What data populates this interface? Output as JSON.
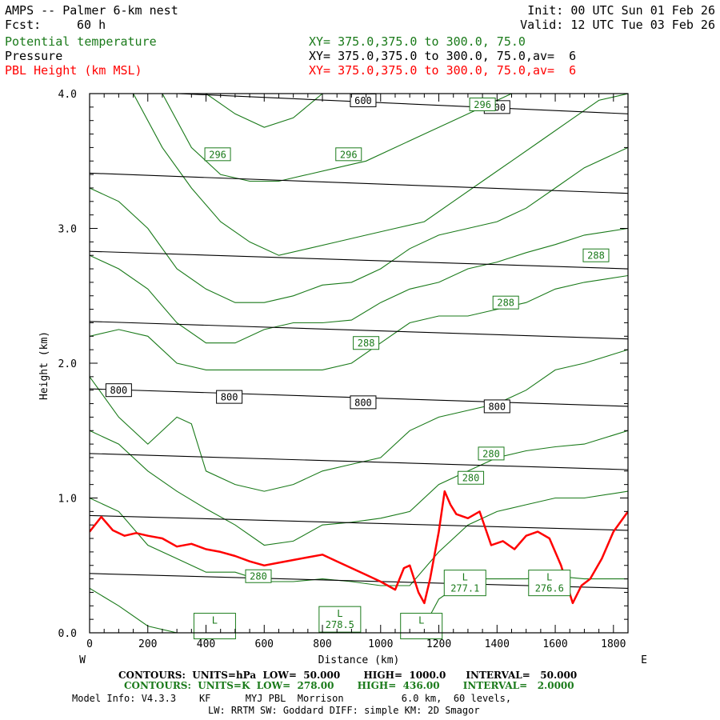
{
  "header": {
    "title": "AMPS -- Palmer 6-km nest",
    "fcst_label": "Fcst:",
    "fcst_value": "60 h",
    "init": "Init: 00 UTC Sun 01 Feb 26",
    "valid": "Valid: 12 UTC Tue 03 Feb 26"
  },
  "legend": [
    {
      "name": "Potential temperature",
      "xy": "XY= 375.0,375.0 to 300.0, 75.0",
      "color": "#1a7a1a"
    },
    {
      "name": "Pressure",
      "xy": "XY= 375.0,375.0 to 300.0, 75.0,av=  6",
      "color": "#000000"
    },
    {
      "name": "PBL Height (km MSL)",
      "xy": "XY= 375.0,375.0 to 300.0, 75.0,av=  6",
      "color": "#ff0000"
    }
  ],
  "chart_data": {
    "type": "line",
    "title": "Cross section: Potential temperature, Pressure, PBL Height",
    "xlabel": "Distance (km)",
    "ylabel": "Height (km)",
    "xlim": [
      0,
      1850
    ],
    "ylim": [
      0,
      4
    ],
    "x_ticks": [
      0,
      200,
      400,
      600,
      800,
      1000,
      1200,
      1400,
      1600,
      1800
    ],
    "x_tick_labels": [
      "0",
      "200",
      "400",
      "600",
      "800",
      "1000",
      "1200",
      "1400",
      "1600",
      "1800"
    ],
    "y_ticks": [
      0,
      1,
      2,
      3,
      4
    ],
    "y_tick_labels": [
      "0.0",
      "1.0",
      "2.0",
      "3.0",
      "4.0"
    ],
    "left_end_label": "W",
    "right_end_label": "E",
    "pressure_isobars": [
      {
        "value": 600,
        "y_start": 4.03,
        "y_end": 3.85
      },
      {
        "value": null,
        "y_start": 3.41,
        "y_end": 3.26
      },
      {
        "value": null,
        "y_start": 2.83,
        "y_end": 2.7
      },
      {
        "value": null,
        "y_start": 2.31,
        "y_end": 2.18
      },
      {
        "value": 800,
        "y_start": 1.81,
        "y_end": 1.68
      },
      {
        "value": null,
        "y_start": 1.33,
        "y_end": 1.21
      },
      {
        "value": null,
        "y_start": 0.87,
        "y_end": 0.76
      },
      {
        "value": null,
        "y_start": 0.44,
        "y_end": 0.33
      }
    ],
    "isobar_labels": [
      {
        "text": "600",
        "x": 940,
        "y": 3.95
      },
      {
        "text": "600",
        "x": 1400,
        "y": 3.9
      },
      {
        "text": "800",
        "x": 100,
        "y": 1.8
      },
      {
        "text": "800",
        "x": 480,
        "y": 1.75
      },
      {
        "text": "800",
        "x": 940,
        "y": 1.71
      },
      {
        "text": "800",
        "x": 1400,
        "y": 1.68
      }
    ],
    "theta_contours": [
      {
        "x": [
          0,
          100,
          200,
          300,
          400,
          500,
          600,
          700,
          800,
          900,
          1000,
          1100,
          1150,
          1200,
          1300,
          1400,
          1500,
          1600,
          1700,
          1850
        ],
        "y": [
          0.33,
          0.2,
          0.05,
          0,
          0,
          0,
          0,
          0,
          0,
          0,
          0,
          0,
          0.05,
          0.25,
          0.4,
          0.4,
          0.4,
          0.42,
          0.4,
          0.4
        ]
      },
      {
        "x": [
          0,
          100,
          200,
          300,
          400,
          500,
          600,
          700,
          800,
          900,
          1000,
          1100,
          1200,
          1300,
          1400,
          1500,
          1600,
          1700,
          1850
        ],
        "y": [
          1.0,
          0.9,
          0.65,
          0.55,
          0.45,
          0.45,
          0.38,
          0.38,
          0.4,
          0.38,
          0.35,
          0.35,
          0.6,
          0.8,
          0.9,
          0.95,
          1.0,
          1.0,
          1.05
        ]
      },
      {
        "x": [
          0,
          100,
          200,
          300,
          400,
          500,
          600,
          700,
          800,
          900,
          1000,
          1100,
          1200,
          1300,
          1400,
          1500,
          1600,
          1700,
          1850
        ],
        "y": [
          1.5,
          1.4,
          1.2,
          1.05,
          0.92,
          0.8,
          0.65,
          0.68,
          0.8,
          0.82,
          0.85,
          0.9,
          1.1,
          1.2,
          1.3,
          1.35,
          1.38,
          1.4,
          1.5
        ]
      },
      {
        "x": [
          0,
          100,
          200,
          300,
          350,
          400,
          500,
          600,
          700,
          800,
          900,
          1000,
          1100,
          1200,
          1300,
          1400,
          1500,
          1600,
          1700,
          1850
        ],
        "y": [
          1.9,
          1.6,
          1.4,
          1.6,
          1.55,
          1.2,
          1.1,
          1.05,
          1.1,
          1.2,
          1.25,
          1.3,
          1.5,
          1.6,
          1.65,
          1.7,
          1.8,
          1.95,
          2.0,
          2.1
        ]
      },
      {
        "x": [
          0,
          100,
          200,
          300,
          400,
          500,
          600,
          700,
          800,
          900,
          1000,
          1100,
          1200,
          1300,
          1400,
          1500,
          1600,
          1700,
          1850
        ],
        "y": [
          2.2,
          2.25,
          2.2,
          2.0,
          1.95,
          1.95,
          1.95,
          1.95,
          1.95,
          2.0,
          2.15,
          2.3,
          2.35,
          2.35,
          2.4,
          2.45,
          2.55,
          2.6,
          2.65
        ]
      },
      {
        "x": [
          0,
          100,
          200,
          300,
          400,
          500,
          600,
          700,
          800,
          900,
          1000,
          1100,
          1200,
          1300,
          1400,
          1500,
          1600,
          1700,
          1850
        ],
        "y": [
          2.8,
          2.7,
          2.55,
          2.3,
          2.15,
          2.15,
          2.25,
          2.3,
          2.3,
          2.32,
          2.45,
          2.55,
          2.6,
          2.7,
          2.75,
          2.82,
          2.88,
          2.95,
          3.0
        ]
      },
      {
        "x": [
          0,
          100,
          200,
          300,
          400,
          500,
          600,
          700,
          800,
          900,
          1000,
          1100,
          1200,
          1300,
          1400,
          1500,
          1600,
          1700,
          1850
        ],
        "y": [
          3.3,
          3.2,
          3.0,
          2.7,
          2.55,
          2.45,
          2.45,
          2.5,
          2.58,
          2.6,
          2.7,
          2.85,
          2.95,
          3.0,
          3.05,
          3.15,
          3.3,
          3.45,
          3.6
        ]
      },
      {
        "x": [
          150,
          250,
          350,
          450,
          550,
          650,
          750,
          850,
          950,
          1050,
          1150,
          1250,
          1350,
          1450,
          1550,
          1650,
          1750,
          1850
        ],
        "y": [
          4.0,
          3.6,
          3.3,
          3.05,
          2.9,
          2.8,
          2.85,
          2.9,
          2.95,
          3.0,
          3.05,
          3.2,
          3.35,
          3.5,
          3.65,
          3.8,
          3.95,
          4.0
        ]
      },
      {
        "x": [
          250,
          350,
          450,
          550,
          650,
          750,
          850,
          950,
          1050,
          1150,
          1250,
          1350,
          1450
        ],
        "y": [
          4.0,
          3.6,
          3.4,
          3.35,
          3.35,
          3.4,
          3.45,
          3.5,
          3.6,
          3.7,
          3.8,
          3.9,
          4.0
        ]
      },
      {
        "x": [
          400,
          500,
          600,
          700,
          800
        ],
        "y": [
          4.0,
          3.85,
          3.75,
          3.82,
          4.0
        ]
      }
    ],
    "theta_labels": [
      {
        "text": "296",
        "x": 440,
        "y": 3.55
      },
      {
        "text": "296",
        "x": 890,
        "y": 3.55
      },
      {
        "text": "296",
        "x": 1350,
        "y": 3.92
      },
      {
        "text": "288",
        "x": 950,
        "y": 2.15
      },
      {
        "text": "288",
        "x": 1430,
        "y": 2.45
      },
      {
        "text": "288",
        "x": 1740,
        "y": 2.8
      },
      {
        "text": "280",
        "x": 580,
        "y": 0.42
      },
      {
        "text": "280",
        "x": 1310,
        "y": 1.15
      },
      {
        "text": "280",
        "x": 1380,
        "y": 1.33
      }
    ],
    "lows": [
      {
        "label": "L",
        "value": "",
        "x": 430,
        "y": 0.05
      },
      {
        "label": "L",
        "value": "278.5",
        "x": 860,
        "y": 0.1
      },
      {
        "label": "L",
        "value": "",
        "x": 1140,
        "y": 0.05
      },
      {
        "label": "L",
        "value": "277.1",
        "x": 1290,
        "y": 0.37
      },
      {
        "label": "L",
        "value": "276.6",
        "x": 1580,
        "y": 0.37
      }
    ],
    "pbl_height": {
      "x": [
        0,
        40,
        80,
        120,
        160,
        200,
        250,
        300,
        350,
        400,
        450,
        500,
        550,
        600,
        650,
        700,
        750,
        800,
        850,
        900,
        950,
        1000,
        1050,
        1080,
        1100,
        1130,
        1150,
        1170,
        1200,
        1220,
        1240,
        1260,
        1300,
        1340,
        1380,
        1420,
        1460,
        1500,
        1540,
        1580,
        1620,
        1660,
        1690,
        1720,
        1760,
        1800,
        1850
      ],
      "y": [
        0.75,
        0.86,
        0.76,
        0.72,
        0.74,
        0.72,
        0.7,
        0.64,
        0.66,
        0.62,
        0.6,
        0.57,
        0.53,
        0.5,
        0.52,
        0.54,
        0.56,
        0.58,
        0.53,
        0.48,
        0.43,
        0.38,
        0.32,
        0.48,
        0.5,
        0.3,
        0.22,
        0.4,
        0.75,
        1.05,
        0.95,
        0.88,
        0.85,
        0.9,
        0.65,
        0.68,
        0.62,
        0.72,
        0.75,
        0.7,
        0.5,
        0.22,
        0.35,
        0.4,
        0.55,
        0.75,
        0.9
      ]
    }
  },
  "footer": {
    "line1": "CONTOURS:  UNITS=hPa  LOW=  50.000       HIGH=  1000.0      INTERVAL=   50.000",
    "line2": "CONTOURS:  UNITS=K  LOW=  278.00       HIGH=  436.00       INTERVAL=   2.0000",
    "line3": "Model Info: V4.3.3    KF      MYJ PBL  Morrison          6.0 km,  60 levels,",
    "line4": "LW: RRTM SW: Goddard DIFF: simple KM: 2D Smagor"
  },
  "colors": {
    "theta": "#1a7a1a",
    "pressure": "#000000",
    "pbl": "#ff0000",
    "frame": "#000000",
    "background": "#ffffff"
  }
}
